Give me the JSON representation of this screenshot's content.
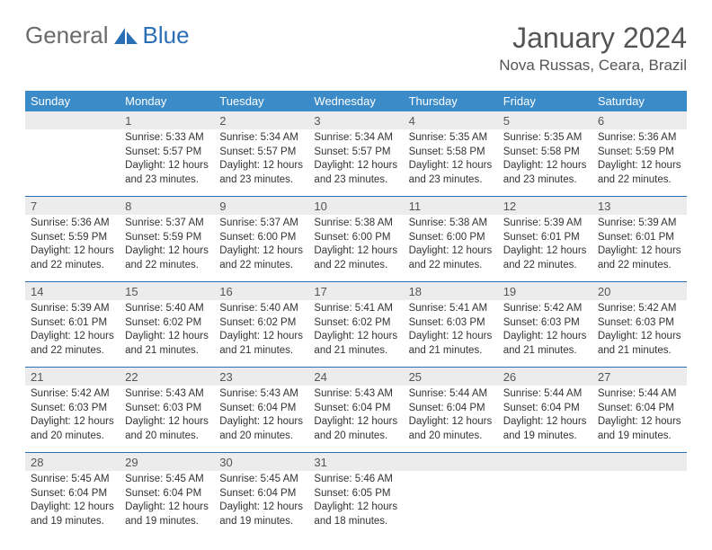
{
  "brand": {
    "part1": "General",
    "part2": "Blue"
  },
  "title": "January 2024",
  "location": "Nova Russas, Ceara, Brazil",
  "colors": {
    "header_bg": "#3b8bc9",
    "daynum_bg": "#ececec",
    "rule": "#2a6fb5",
    "text": "#333333",
    "title_text": "#555555"
  },
  "dow": [
    "Sunday",
    "Monday",
    "Tuesday",
    "Wednesday",
    "Thursday",
    "Friday",
    "Saturday"
  ],
  "weeks": [
    [
      null,
      {
        "n": "1",
        "sr": "Sunrise: 5:33 AM",
        "ss": "Sunset: 5:57 PM",
        "d1": "Daylight: 12 hours",
        "d2": "and 23 minutes."
      },
      {
        "n": "2",
        "sr": "Sunrise: 5:34 AM",
        "ss": "Sunset: 5:57 PM",
        "d1": "Daylight: 12 hours",
        "d2": "and 23 minutes."
      },
      {
        "n": "3",
        "sr": "Sunrise: 5:34 AM",
        "ss": "Sunset: 5:57 PM",
        "d1": "Daylight: 12 hours",
        "d2": "and 23 minutes."
      },
      {
        "n": "4",
        "sr": "Sunrise: 5:35 AM",
        "ss": "Sunset: 5:58 PM",
        "d1": "Daylight: 12 hours",
        "d2": "and 23 minutes."
      },
      {
        "n": "5",
        "sr": "Sunrise: 5:35 AM",
        "ss": "Sunset: 5:58 PM",
        "d1": "Daylight: 12 hours",
        "d2": "and 23 minutes."
      },
      {
        "n": "6",
        "sr": "Sunrise: 5:36 AM",
        "ss": "Sunset: 5:59 PM",
        "d1": "Daylight: 12 hours",
        "d2": "and 22 minutes."
      }
    ],
    [
      {
        "n": "7",
        "sr": "Sunrise: 5:36 AM",
        "ss": "Sunset: 5:59 PM",
        "d1": "Daylight: 12 hours",
        "d2": "and 22 minutes."
      },
      {
        "n": "8",
        "sr": "Sunrise: 5:37 AM",
        "ss": "Sunset: 5:59 PM",
        "d1": "Daylight: 12 hours",
        "d2": "and 22 minutes."
      },
      {
        "n": "9",
        "sr": "Sunrise: 5:37 AM",
        "ss": "Sunset: 6:00 PM",
        "d1": "Daylight: 12 hours",
        "d2": "and 22 minutes."
      },
      {
        "n": "10",
        "sr": "Sunrise: 5:38 AM",
        "ss": "Sunset: 6:00 PM",
        "d1": "Daylight: 12 hours",
        "d2": "and 22 minutes."
      },
      {
        "n": "11",
        "sr": "Sunrise: 5:38 AM",
        "ss": "Sunset: 6:00 PM",
        "d1": "Daylight: 12 hours",
        "d2": "and 22 minutes."
      },
      {
        "n": "12",
        "sr": "Sunrise: 5:39 AM",
        "ss": "Sunset: 6:01 PM",
        "d1": "Daylight: 12 hours",
        "d2": "and 22 minutes."
      },
      {
        "n": "13",
        "sr": "Sunrise: 5:39 AM",
        "ss": "Sunset: 6:01 PM",
        "d1": "Daylight: 12 hours",
        "d2": "and 22 minutes."
      }
    ],
    [
      {
        "n": "14",
        "sr": "Sunrise: 5:39 AM",
        "ss": "Sunset: 6:01 PM",
        "d1": "Daylight: 12 hours",
        "d2": "and 22 minutes."
      },
      {
        "n": "15",
        "sr": "Sunrise: 5:40 AM",
        "ss": "Sunset: 6:02 PM",
        "d1": "Daylight: 12 hours",
        "d2": "and 21 minutes."
      },
      {
        "n": "16",
        "sr": "Sunrise: 5:40 AM",
        "ss": "Sunset: 6:02 PM",
        "d1": "Daylight: 12 hours",
        "d2": "and 21 minutes."
      },
      {
        "n": "17",
        "sr": "Sunrise: 5:41 AM",
        "ss": "Sunset: 6:02 PM",
        "d1": "Daylight: 12 hours",
        "d2": "and 21 minutes."
      },
      {
        "n": "18",
        "sr": "Sunrise: 5:41 AM",
        "ss": "Sunset: 6:03 PM",
        "d1": "Daylight: 12 hours",
        "d2": "and 21 minutes."
      },
      {
        "n": "19",
        "sr": "Sunrise: 5:42 AM",
        "ss": "Sunset: 6:03 PM",
        "d1": "Daylight: 12 hours",
        "d2": "and 21 minutes."
      },
      {
        "n": "20",
        "sr": "Sunrise: 5:42 AM",
        "ss": "Sunset: 6:03 PM",
        "d1": "Daylight: 12 hours",
        "d2": "and 21 minutes."
      }
    ],
    [
      {
        "n": "21",
        "sr": "Sunrise: 5:42 AM",
        "ss": "Sunset: 6:03 PM",
        "d1": "Daylight: 12 hours",
        "d2": "and 20 minutes."
      },
      {
        "n": "22",
        "sr": "Sunrise: 5:43 AM",
        "ss": "Sunset: 6:03 PM",
        "d1": "Daylight: 12 hours",
        "d2": "and 20 minutes."
      },
      {
        "n": "23",
        "sr": "Sunrise: 5:43 AM",
        "ss": "Sunset: 6:04 PM",
        "d1": "Daylight: 12 hours",
        "d2": "and 20 minutes."
      },
      {
        "n": "24",
        "sr": "Sunrise: 5:43 AM",
        "ss": "Sunset: 6:04 PM",
        "d1": "Daylight: 12 hours",
        "d2": "and 20 minutes."
      },
      {
        "n": "25",
        "sr": "Sunrise: 5:44 AM",
        "ss": "Sunset: 6:04 PM",
        "d1": "Daylight: 12 hours",
        "d2": "and 20 minutes."
      },
      {
        "n": "26",
        "sr": "Sunrise: 5:44 AM",
        "ss": "Sunset: 6:04 PM",
        "d1": "Daylight: 12 hours",
        "d2": "and 19 minutes."
      },
      {
        "n": "27",
        "sr": "Sunrise: 5:44 AM",
        "ss": "Sunset: 6:04 PM",
        "d1": "Daylight: 12 hours",
        "d2": "and 19 minutes."
      }
    ],
    [
      {
        "n": "28",
        "sr": "Sunrise: 5:45 AM",
        "ss": "Sunset: 6:04 PM",
        "d1": "Daylight: 12 hours",
        "d2": "and 19 minutes."
      },
      {
        "n": "29",
        "sr": "Sunrise: 5:45 AM",
        "ss": "Sunset: 6:04 PM",
        "d1": "Daylight: 12 hours",
        "d2": "and 19 minutes."
      },
      {
        "n": "30",
        "sr": "Sunrise: 5:45 AM",
        "ss": "Sunset: 6:04 PM",
        "d1": "Daylight: 12 hours",
        "d2": "and 19 minutes."
      },
      {
        "n": "31",
        "sr": "Sunrise: 5:46 AM",
        "ss": "Sunset: 6:05 PM",
        "d1": "Daylight: 12 hours",
        "d2": "and 18 minutes."
      },
      null,
      null,
      null
    ]
  ]
}
